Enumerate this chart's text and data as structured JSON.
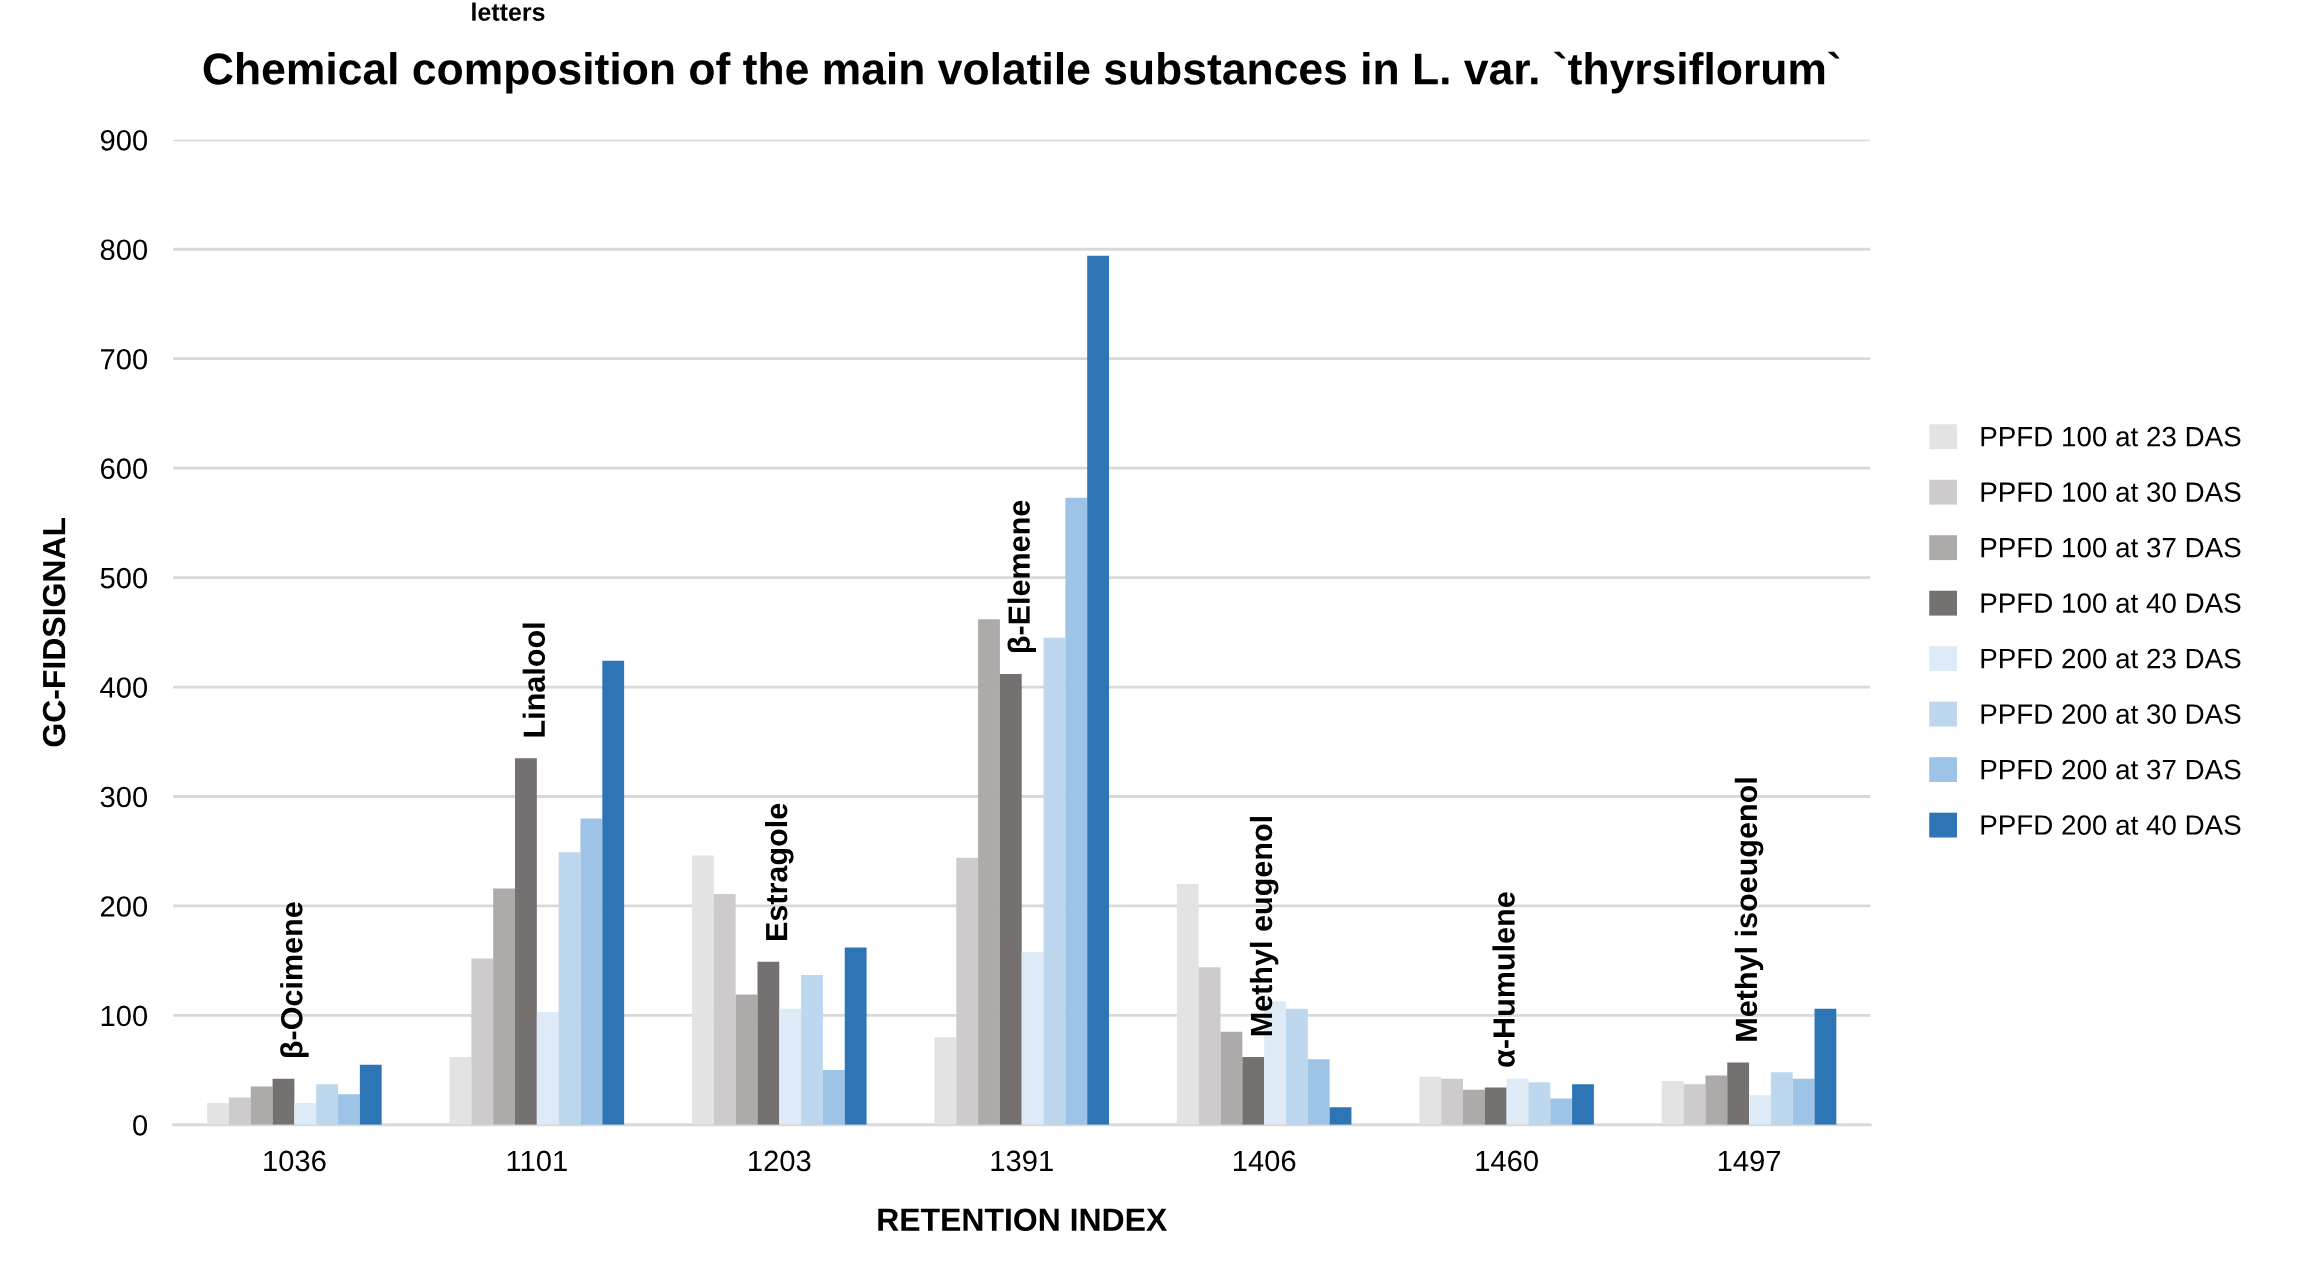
{
  "chart_data": {
    "type": "bar",
    "title": "Chemical composition of the main volatile substances in L. var. `thyrsiflorum`",
    "xlabel": "RETENTION INDEX",
    "ylabel": "GC-FIDSIGNAL",
    "categories": [
      "1036",
      "1101",
      "1203",
      "1391",
      "1406",
      "1460",
      "1497"
    ],
    "series": [
      {
        "name": "PPFD 100 at 23 DAS",
        "color": "#e3e3e3",
        "values": [
          20,
          62,
          246,
          80,
          220,
          44,
          40
        ]
      },
      {
        "name": "PPFD 100 at 30 DAS",
        "color": "#cdcbcb",
        "values": [
          25,
          152,
          211,
          244,
          144,
          42,
          37
        ]
      },
      {
        "name": "PPFD 100 at 37 DAS",
        "color": "#aeaaaa",
        "values": [
          35,
          216,
          119,
          462,
          85,
          32,
          45
        ]
      },
      {
        "name": "PPFD 100 at 40 DAS",
        "color": "#767171",
        "values": [
          42,
          335,
          149,
          412,
          62,
          34,
          57
        ]
      },
      {
        "name": "PPFD 200 at 23 DAS",
        "color": "#deebf7",
        "values": [
          20,
          103,
          106,
          158,
          113,
          42,
          27
        ]
      },
      {
        "name": "PPFD 200 at 30 DAS",
        "color": "#bdd7ee",
        "values": [
          37,
          249,
          137,
          445,
          106,
          39,
          48
        ]
      },
      {
        "name": "PPFD 200 at 37 DAS",
        "color": "#9dc3e6",
        "values": [
          28,
          280,
          50,
          573,
          60,
          24,
          42
        ]
      },
      {
        "name": "PPFD 200 at 40 DAS",
        "color": "#2e75b6",
        "values": [
          55,
          424,
          162,
          794,
          16,
          37,
          106
        ]
      }
    ],
    "ylim": [
      0,
      900
    ],
    "yticks": [
      0,
      100,
      200,
      300,
      400,
      500,
      600,
      700,
      800,
      900
    ],
    "grid": "y",
    "legend": "right",
    "annotations": [
      "β-Ocimene",
      "Linalool",
      "Estragole",
      "β-Elemene",
      "Methyl eugenol",
      "α-Humulene",
      "Methyl isoeugenol",
      "letters"
    ]
  }
}
